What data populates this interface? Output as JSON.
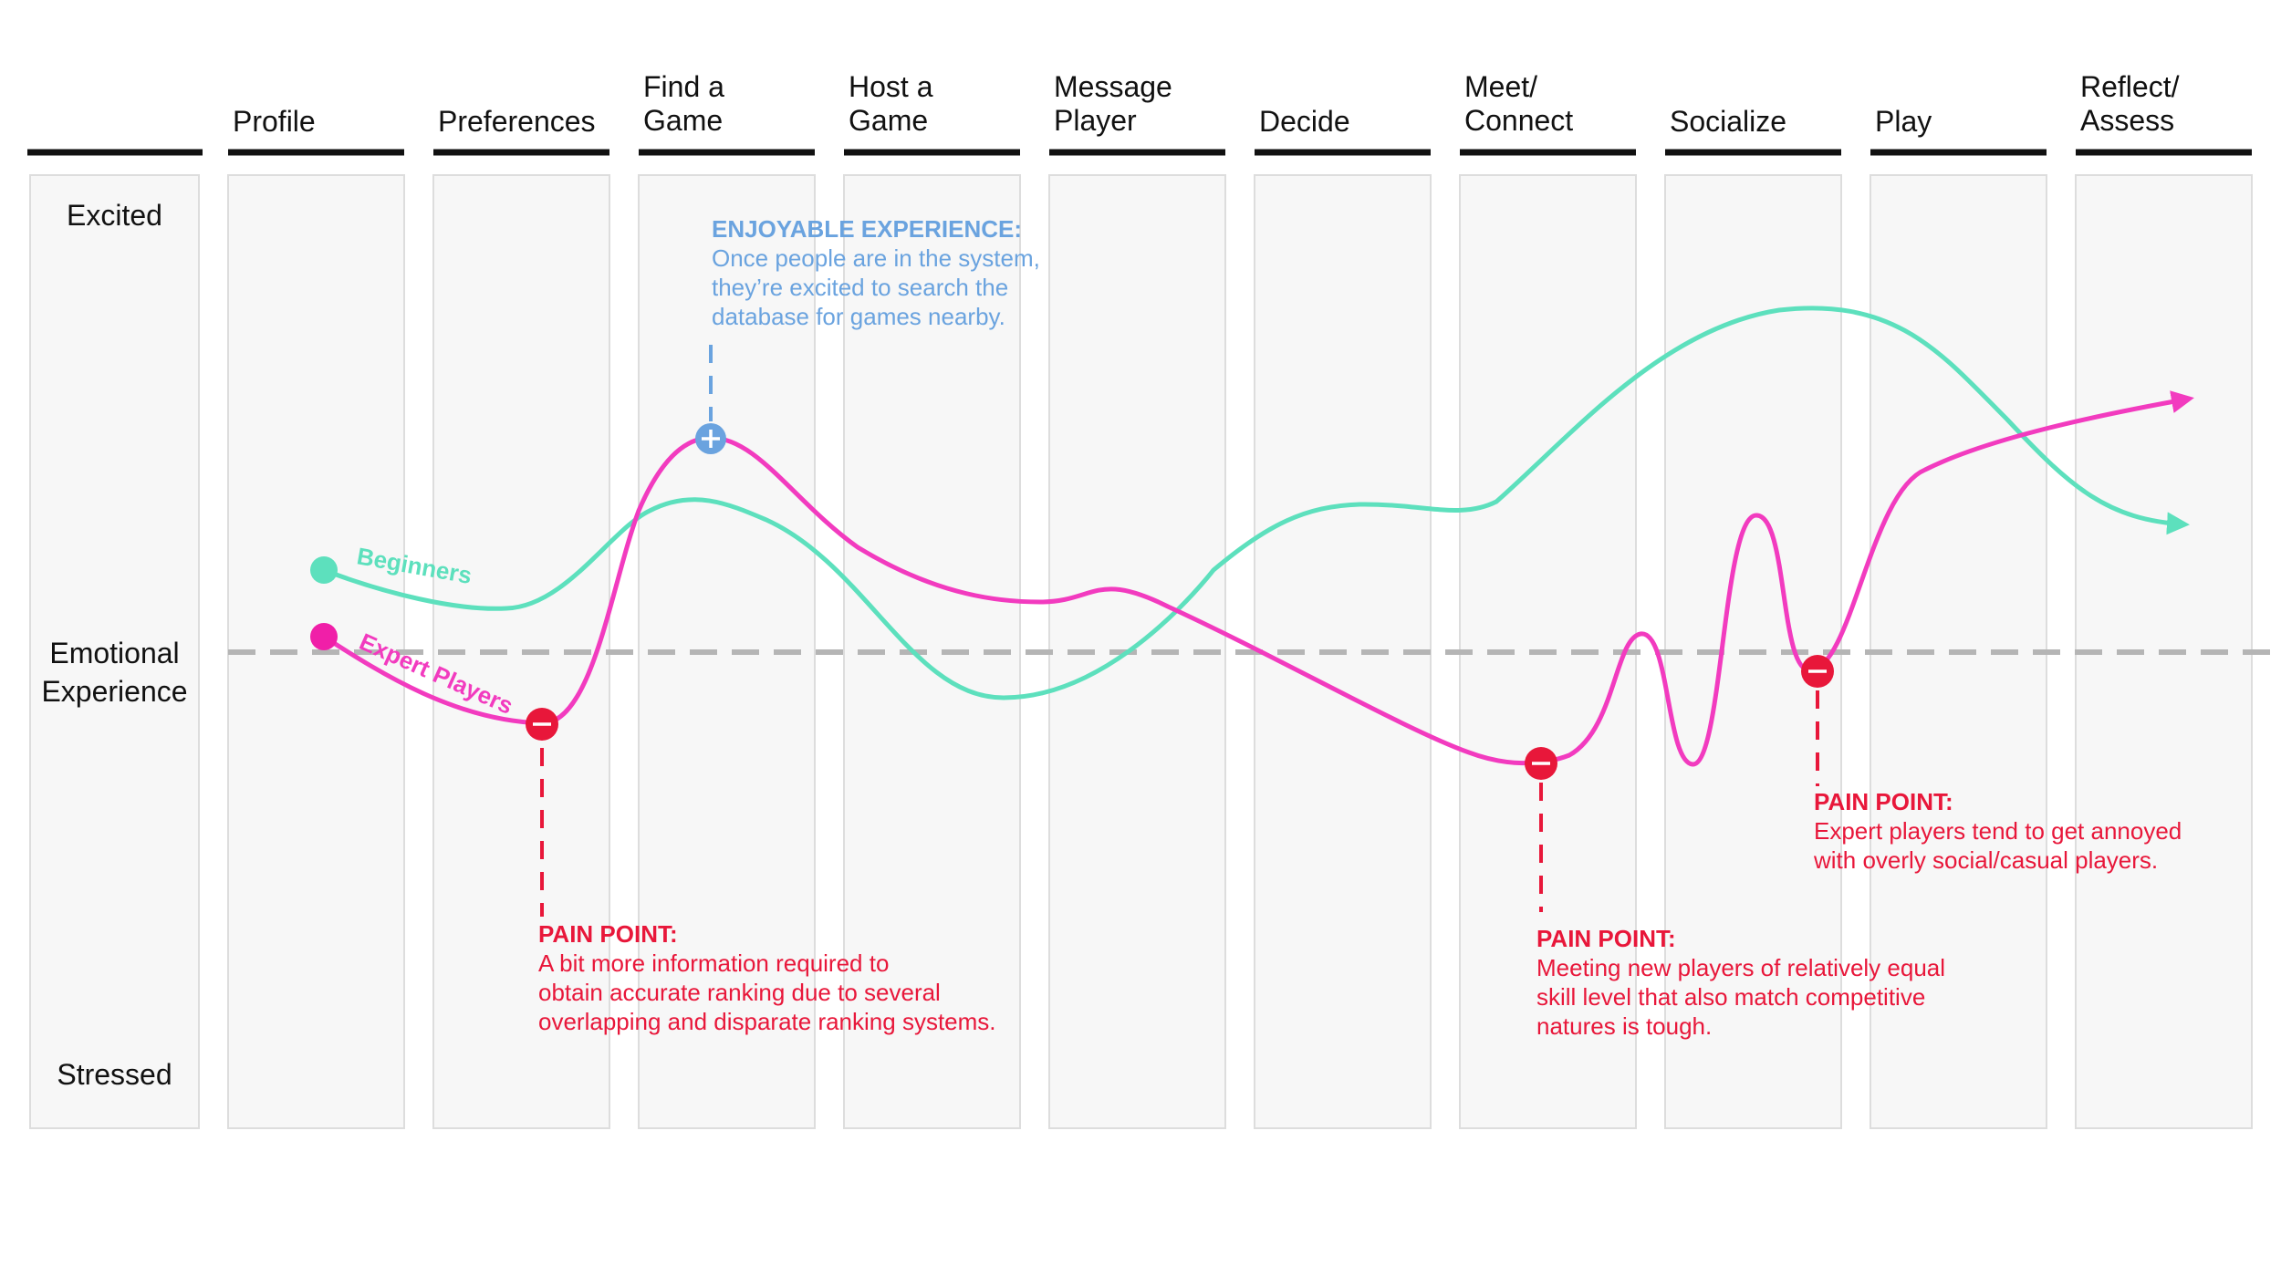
{
  "stages": [
    {
      "line1": "Profile",
      "line2": ""
    },
    {
      "line1": "Preferences",
      "line2": ""
    },
    {
      "line1": "Find a",
      "line2": "Game"
    },
    {
      "line1": "Host a",
      "line2": "Game"
    },
    {
      "line1": "Message",
      "line2": "Player"
    },
    {
      "line1": "Decide",
      "line2": ""
    },
    {
      "line1": "Meet/",
      "line2": "Connect"
    },
    {
      "line1": "Socialize",
      "line2": ""
    },
    {
      "line1": "Play",
      "line2": ""
    },
    {
      "line1": "Reflect/",
      "line2": "Assess"
    }
  ],
  "axis": {
    "top": "Excited",
    "middle_line1": "Emotional",
    "middle_line2": "Experience",
    "bottom": "Stressed"
  },
  "series": {
    "beginners": {
      "name": "Beginners",
      "color": "#5de0bd"
    },
    "experts": {
      "name": "Expert Players",
      "color": "#f23bbf"
    }
  },
  "annotations": {
    "enjoyable": {
      "title": "ENJOYABLE EXPERIENCE:",
      "text": "Once people are in the system,\nthey’re excited to search the\ndatabase for games nearby."
    },
    "pain1": {
      "title": "PAIN POINT:",
      "text": "A bit more information required to\nobtain accurate ranking due to several\noverlapping and disparate ranking systems."
    },
    "pain2": {
      "title": "PAIN POINT:",
      "text": "Meeting new players of relatively equal\n skill level that also match competitive\nnatures is tough."
    },
    "pain3": {
      "title": "PAIN POINT:",
      "text": "Expert players tend to get annoyed\nwith overly social/casual players."
    }
  },
  "colors": {
    "pain": "#e8173a",
    "enjoy": "#6aa3df",
    "column_fill": "#f7f7f7",
    "column_border": "#dddddd",
    "baseline": "#b5b5b5"
  }
}
